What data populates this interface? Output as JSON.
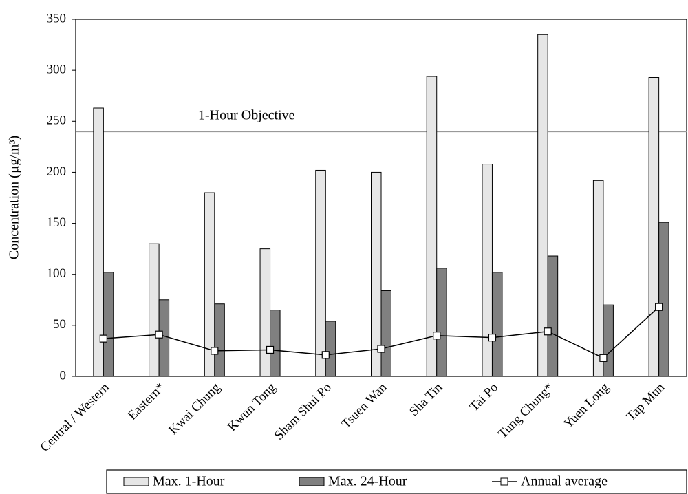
{
  "chart_data": {
    "type": "bar",
    "y_label": "Concentration (µg/m³)",
    "categories": [
      "Central / Western",
      "Eastern*",
      "Kwai Chung",
      "Kwun Tong",
      "Sham Shui Po",
      "Tsuen Wan",
      "Sha Tin",
      "Tai Po",
      "Tung Chung*",
      "Yuen Long",
      "Tap Mun"
    ],
    "series": [
      {
        "name": "Max. 1-Hour",
        "type": "bar",
        "color": "#e6e6e6",
        "values": [
          263,
          130,
          180,
          125,
          202,
          200,
          294,
          208,
          335,
          192,
          293
        ]
      },
      {
        "name": "Max. 24-Hour",
        "type": "bar",
        "color": "#808080",
        "values": [
          102,
          75,
          71,
          65,
          54,
          84,
          106,
          102,
          118,
          70,
          151
        ]
      },
      {
        "name": "Annual average",
        "type": "line",
        "color": "#000000",
        "values": [
          37,
          41,
          25,
          26,
          21,
          27,
          40,
          38,
          44,
          18,
          68
        ]
      }
    ],
    "objective": {
      "value": 240,
      "label": "1-Hour Objective",
      "color": "#999999"
    },
    "ylim": [
      0,
      350
    ],
    "yticks": [
      0,
      50,
      100,
      150,
      200,
      250,
      300,
      350
    ],
    "grid": false,
    "legend": "bottom"
  }
}
